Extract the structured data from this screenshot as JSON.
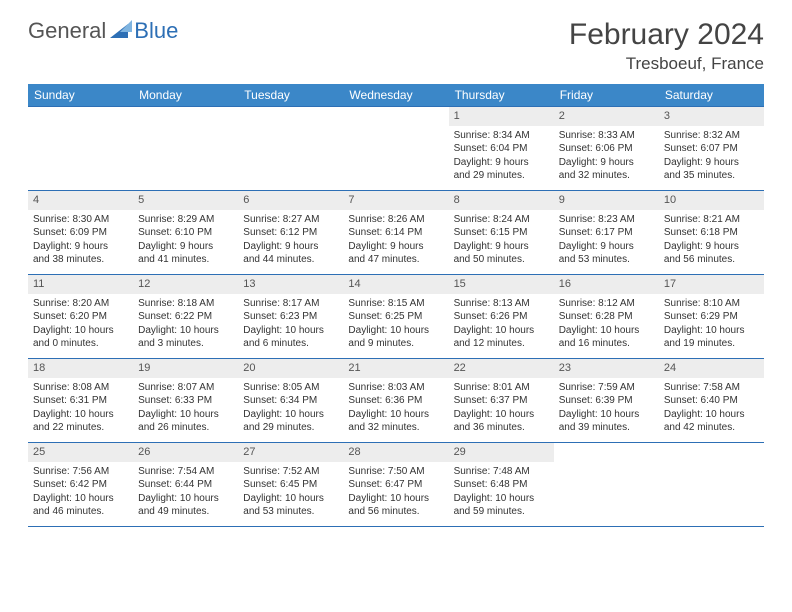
{
  "logo": {
    "general": "General",
    "blue": "Blue"
  },
  "title": "February 2024",
  "location": "Tresboeuf, France",
  "colors": {
    "header_bg": "#3b87c8",
    "header_text": "#ffffff",
    "border": "#2d6fb5",
    "daynum_bg": "#ededed",
    "text": "#333333"
  },
  "weekdays": [
    "Sunday",
    "Monday",
    "Tuesday",
    "Wednesday",
    "Thursday",
    "Friday",
    "Saturday"
  ],
  "days": {
    "1": {
      "sunrise": "Sunrise: 8:34 AM",
      "sunset": "Sunset: 6:04 PM",
      "day1": "Daylight: 9 hours",
      "day2": "and 29 minutes."
    },
    "2": {
      "sunrise": "Sunrise: 8:33 AM",
      "sunset": "Sunset: 6:06 PM",
      "day1": "Daylight: 9 hours",
      "day2": "and 32 minutes."
    },
    "3": {
      "sunrise": "Sunrise: 8:32 AM",
      "sunset": "Sunset: 6:07 PM",
      "day1": "Daylight: 9 hours",
      "day2": "and 35 minutes."
    },
    "4": {
      "sunrise": "Sunrise: 8:30 AM",
      "sunset": "Sunset: 6:09 PM",
      "day1": "Daylight: 9 hours",
      "day2": "and 38 minutes."
    },
    "5": {
      "sunrise": "Sunrise: 8:29 AM",
      "sunset": "Sunset: 6:10 PM",
      "day1": "Daylight: 9 hours",
      "day2": "and 41 minutes."
    },
    "6": {
      "sunrise": "Sunrise: 8:27 AM",
      "sunset": "Sunset: 6:12 PM",
      "day1": "Daylight: 9 hours",
      "day2": "and 44 minutes."
    },
    "7": {
      "sunrise": "Sunrise: 8:26 AM",
      "sunset": "Sunset: 6:14 PM",
      "day1": "Daylight: 9 hours",
      "day2": "and 47 minutes."
    },
    "8": {
      "sunrise": "Sunrise: 8:24 AM",
      "sunset": "Sunset: 6:15 PM",
      "day1": "Daylight: 9 hours",
      "day2": "and 50 minutes."
    },
    "9": {
      "sunrise": "Sunrise: 8:23 AM",
      "sunset": "Sunset: 6:17 PM",
      "day1": "Daylight: 9 hours",
      "day2": "and 53 minutes."
    },
    "10": {
      "sunrise": "Sunrise: 8:21 AM",
      "sunset": "Sunset: 6:18 PM",
      "day1": "Daylight: 9 hours",
      "day2": "and 56 minutes."
    },
    "11": {
      "sunrise": "Sunrise: 8:20 AM",
      "sunset": "Sunset: 6:20 PM",
      "day1": "Daylight: 10 hours",
      "day2": "and 0 minutes."
    },
    "12": {
      "sunrise": "Sunrise: 8:18 AM",
      "sunset": "Sunset: 6:22 PM",
      "day1": "Daylight: 10 hours",
      "day2": "and 3 minutes."
    },
    "13": {
      "sunrise": "Sunrise: 8:17 AM",
      "sunset": "Sunset: 6:23 PM",
      "day1": "Daylight: 10 hours",
      "day2": "and 6 minutes."
    },
    "14": {
      "sunrise": "Sunrise: 8:15 AM",
      "sunset": "Sunset: 6:25 PM",
      "day1": "Daylight: 10 hours",
      "day2": "and 9 minutes."
    },
    "15": {
      "sunrise": "Sunrise: 8:13 AM",
      "sunset": "Sunset: 6:26 PM",
      "day1": "Daylight: 10 hours",
      "day2": "and 12 minutes."
    },
    "16": {
      "sunrise": "Sunrise: 8:12 AM",
      "sunset": "Sunset: 6:28 PM",
      "day1": "Daylight: 10 hours",
      "day2": "and 16 minutes."
    },
    "17": {
      "sunrise": "Sunrise: 8:10 AM",
      "sunset": "Sunset: 6:29 PM",
      "day1": "Daylight: 10 hours",
      "day2": "and 19 minutes."
    },
    "18": {
      "sunrise": "Sunrise: 8:08 AM",
      "sunset": "Sunset: 6:31 PM",
      "day1": "Daylight: 10 hours",
      "day2": "and 22 minutes."
    },
    "19": {
      "sunrise": "Sunrise: 8:07 AM",
      "sunset": "Sunset: 6:33 PM",
      "day1": "Daylight: 10 hours",
      "day2": "and 26 minutes."
    },
    "20": {
      "sunrise": "Sunrise: 8:05 AM",
      "sunset": "Sunset: 6:34 PM",
      "day1": "Daylight: 10 hours",
      "day2": "and 29 minutes."
    },
    "21": {
      "sunrise": "Sunrise: 8:03 AM",
      "sunset": "Sunset: 6:36 PM",
      "day1": "Daylight: 10 hours",
      "day2": "and 32 minutes."
    },
    "22": {
      "sunrise": "Sunrise: 8:01 AM",
      "sunset": "Sunset: 6:37 PM",
      "day1": "Daylight: 10 hours",
      "day2": "and 36 minutes."
    },
    "23": {
      "sunrise": "Sunrise: 7:59 AM",
      "sunset": "Sunset: 6:39 PM",
      "day1": "Daylight: 10 hours",
      "day2": "and 39 minutes."
    },
    "24": {
      "sunrise": "Sunrise: 7:58 AM",
      "sunset": "Sunset: 6:40 PM",
      "day1": "Daylight: 10 hours",
      "day2": "and 42 minutes."
    },
    "25": {
      "sunrise": "Sunrise: 7:56 AM",
      "sunset": "Sunset: 6:42 PM",
      "day1": "Daylight: 10 hours",
      "day2": "and 46 minutes."
    },
    "26": {
      "sunrise": "Sunrise: 7:54 AM",
      "sunset": "Sunset: 6:44 PM",
      "day1": "Daylight: 10 hours",
      "day2": "and 49 minutes."
    },
    "27": {
      "sunrise": "Sunrise: 7:52 AM",
      "sunset": "Sunset: 6:45 PM",
      "day1": "Daylight: 10 hours",
      "day2": "and 53 minutes."
    },
    "28": {
      "sunrise": "Sunrise: 7:50 AM",
      "sunset": "Sunset: 6:47 PM",
      "day1": "Daylight: 10 hours",
      "day2": "and 56 minutes."
    },
    "29": {
      "sunrise": "Sunrise: 7:48 AM",
      "sunset": "Sunset: 6:48 PM",
      "day1": "Daylight: 10 hours",
      "day2": "and 59 minutes."
    }
  }
}
